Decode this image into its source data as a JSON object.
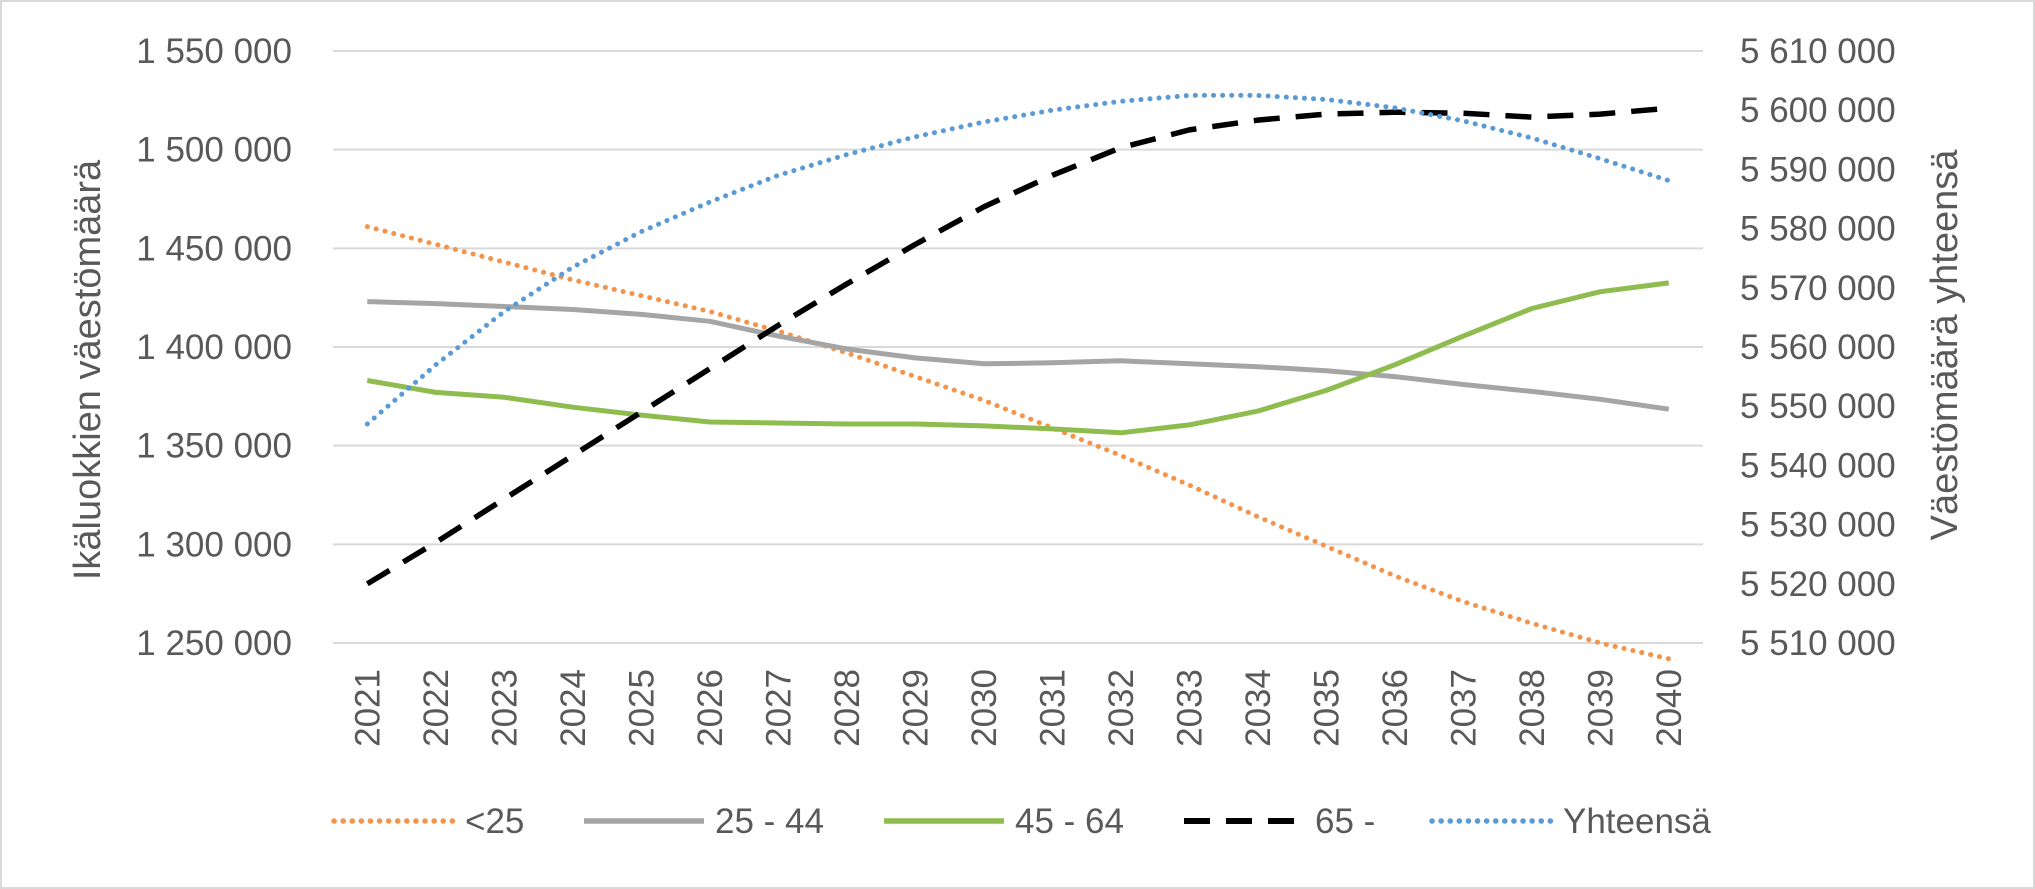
{
  "chart_data": {
    "type": "line",
    "title": "",
    "xlabel": "",
    "ylabel": "Ikäluokkien väestömäärä",
    "y2label": "Väestömäärä yhteensä",
    "categories": [
      "2021",
      "2022",
      "2023",
      "2024",
      "2025",
      "2026",
      "2027",
      "2028",
      "2029",
      "2030",
      "2031",
      "2032",
      "2033",
      "2034",
      "2035",
      "2036",
      "2037",
      "2038",
      "2039",
      "2040"
    ],
    "ylim": [
      1250000,
      1550000
    ],
    "y2lim": [
      5510000,
      5610000
    ],
    "yticks": [
      "1 250 000",
      "1 300 000",
      "1 350 000",
      "1 400 000",
      "1 450 000",
      "1 500 000",
      "1 550 000"
    ],
    "y2ticks": [
      "5 510 000",
      "5 520 000",
      "5 530 000",
      "5 540 000",
      "5 550 000",
      "5 560 000",
      "5 570 000",
      "5 580 000",
      "5 590 000",
      "5 600 000",
      "5 610 000"
    ],
    "grid": true,
    "legend_position": "bottom",
    "series": [
      {
        "name": "<25",
        "axis": "left",
        "color": "#f4934a",
        "dash": "dotted",
        "values": [
          1461000,
          1452000,
          1443000,
          1434000,
          1426000,
          1418000,
          1408000,
          1397000,
          1385000,
          1373000,
          1359000,
          1345000,
          1330000,
          1314000,
          1299000,
          1284000,
          1271000,
          1260000,
          1250000,
          1242000
        ]
      },
      {
        "name": "25 - 44",
        "axis": "left",
        "color": "#a5a5a5",
        "dash": "solid",
        "values": [
          1423000,
          1422000,
          1420500,
          1419000,
          1416500,
          1413000,
          1405500,
          1399000,
          1394500,
          1391500,
          1392000,
          1393000,
          1391500,
          1390000,
          1388000,
          1385000,
          1381000,
          1377500,
          1373500,
          1368500
        ]
      },
      {
        "name": "45 - 64",
        "axis": "left",
        "color": "#8fbc4f",
        "dash": "solid",
        "values": [
          1383000,
          1377000,
          1374500,
          1369500,
          1365500,
          1362000,
          1361500,
          1361000,
          1361000,
          1360000,
          1358500,
          1356500,
          1360500,
          1367500,
          1378000,
          1391000,
          1405500,
          1419500,
          1428000,
          1432500
        ]
      },
      {
        "name": "65 -",
        "axis": "left",
        "color": "#000000",
        "dash": "dashed",
        "values": [
          1280000,
          1301000,
          1323000,
          1345000,
          1367000,
          1389000,
          1411000,
          1432000,
          1452000,
          1471000,
          1487000,
          1501000,
          1510000,
          1515000,
          1518000,
          1519000,
          1518500,
          1516500,
          1518000,
          1521000
        ]
      },
      {
        "name": "Yhteensä",
        "axis": "right",
        "color": "#5b9bd5",
        "dash": "dotted",
        "values": [
          5547000,
          5557000,
          5566000,
          5573500,
          5579500,
          5584500,
          5589000,
          5592500,
          5595500,
          5598000,
          5600000,
          5601500,
          5602500,
          5602500,
          5601800,
          5600400,
          5598200,
          5595300,
          5591800,
          5588100
        ]
      }
    ]
  }
}
